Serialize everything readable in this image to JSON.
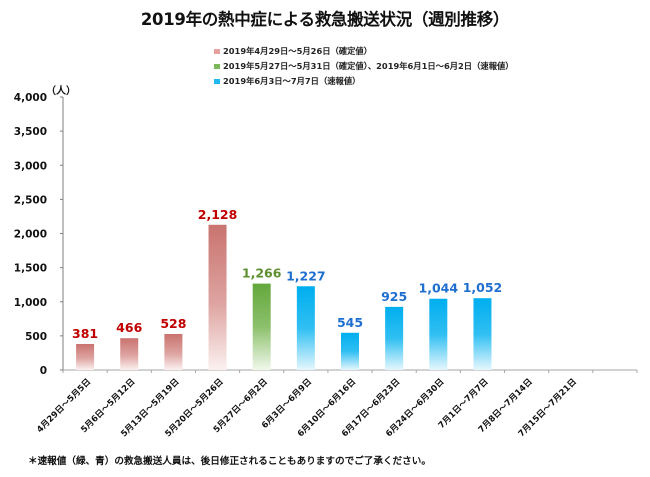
{
  "chart_data": {
    "type": "bar",
    "title": "2019年の熱中症による救急搬送状況（週別推移）",
    "ylabel": "（人）",
    "xlabel": "",
    "ylim": [
      0,
      4000
    ],
    "yticks": [
      0,
      500,
      1000,
      1500,
      2000,
      2500,
      3000,
      3500,
      4000
    ],
    "ytick_labels": [
      "0",
      "500",
      "1,000",
      "1,500",
      "2,000",
      "2,500",
      "3,000",
      "3,500",
      "4,000"
    ],
    "grid": false,
    "legend_position": "top-center",
    "categories": [
      "4月29日～5月5日",
      "5月6日～5月12日",
      "5月13日～5月19日",
      "5月20日～5月26日",
      "5月27日～6月2日",
      "6月3日～6月9日",
      "6月10日～6月16日",
      "6月17日～6月23日",
      "6月24日～6月30日",
      "7月1日～7月7日",
      "7月8日～7月14日",
      "7月15日～7月21日"
    ],
    "values": [
      381,
      466,
      528,
      2128,
      1266,
      1227,
      545,
      925,
      1044,
      1052,
      null,
      null
    ],
    "value_labels": [
      "381",
      "466",
      "528",
      "2,128",
      "1,266",
      "1,227",
      "545",
      "925",
      "1,044",
      "1,052",
      "",
      ""
    ],
    "series_group": [
      "confirmed",
      "confirmed",
      "confirmed",
      "confirmed",
      "mixed",
      "preliminary",
      "preliminary",
      "preliminary",
      "preliminary",
      "preliminary",
      "",
      ""
    ],
    "legend": [
      {
        "key": "confirmed",
        "label": "2019年4月29日～5月26日（確定値）",
        "color": "#c0504d",
        "label_color": "#c00000"
      },
      {
        "key": "mixed",
        "label": "2019年5月27日～5月31日（確定値）、2019年6月1日～6月2日（速報値）",
        "color": "#70ad47",
        "label_color": "#5e8f2f"
      },
      {
        "key": "preliminary",
        "label": "2019年6月3日～7月7日（速報値）",
        "color": "#00b0f0",
        "label_color": "#1f6fd0"
      }
    ]
  },
  "footnote": "＊速報値（緑、青）の救急搬送人員は、後日修正されることもありますのでご了承ください。"
}
